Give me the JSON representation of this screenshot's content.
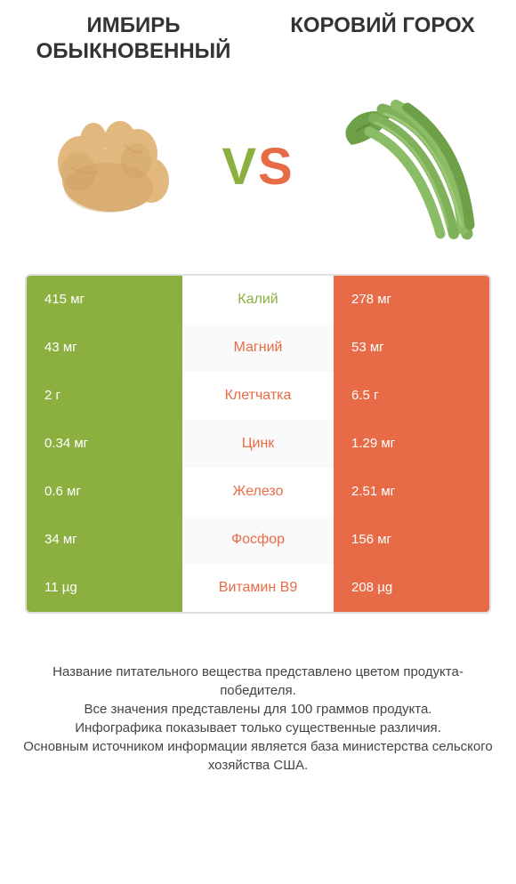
{
  "titles": {
    "left": "ИМБИРЬ ОБЫКНОВЕННЫЙ",
    "right": "КОРОВИЙ ГОРОХ"
  },
  "vs": {
    "v": "V",
    "s": "S"
  },
  "colors": {
    "left": "#8cb03f",
    "right": "#e86b47",
    "ginger_main": "#e3b87f",
    "ginger_shadow": "#c89b5e",
    "beans_green": "#7fb05a",
    "beans_dark": "#5d8a3f",
    "leaf": "#6ea048"
  },
  "rows": [
    {
      "nutrient": "Калий",
      "left": "415 мг",
      "right": "278 мг",
      "winner": "left"
    },
    {
      "nutrient": "Магний",
      "left": "43 мг",
      "right": "53 мг",
      "winner": "right"
    },
    {
      "nutrient": "Клетчатка",
      "left": "2 г",
      "right": "6.5 г",
      "winner": "right"
    },
    {
      "nutrient": "Цинк",
      "left": "0.34 мг",
      "right": "1.29 мг",
      "winner": "right"
    },
    {
      "nutrient": "Железо",
      "left": "0.6 мг",
      "right": "2.51 мг",
      "winner": "right"
    },
    {
      "nutrient": "Фосфор",
      "left": "34 мг",
      "right": "156 мг",
      "winner": "right"
    },
    {
      "nutrient": "Витамин B9",
      "left": "11 µg",
      "right": "208 µg",
      "winner": "right"
    }
  ],
  "footer": {
    "line1": "Название питательного вещества представлено цветом продукта-победителя.",
    "line2": "Все значения представлены для 100 граммов продукта.",
    "line3": "Инфографика показывает только существенные различия.",
    "line4": "Основным источником информации является база министерства сельского хозяйства США."
  }
}
